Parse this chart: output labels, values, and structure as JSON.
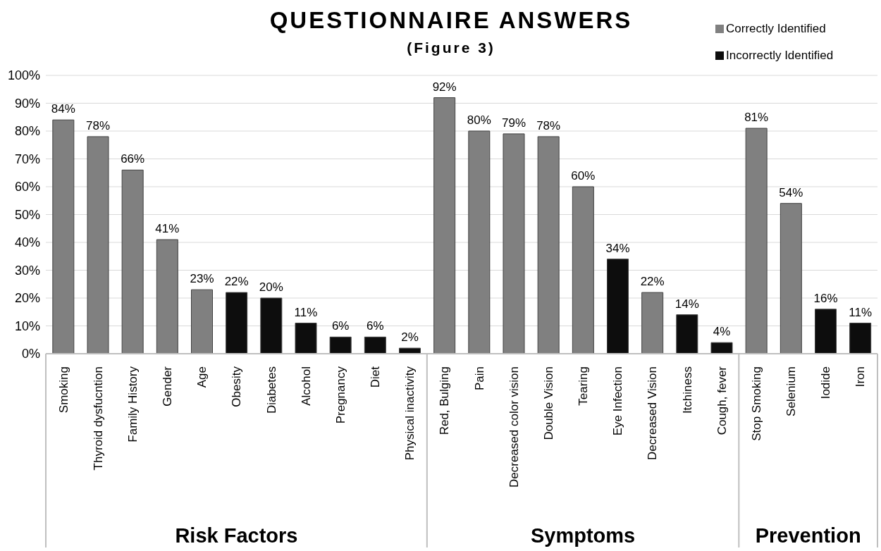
{
  "chart_data": {
    "type": "bar",
    "title": "QUESTIONNAIRE ANSWERS",
    "subtitle": "(Figure 3)",
    "categories": [
      "Smoking",
      "Thyroid dysfucntion",
      "Family History",
      "Gender",
      "Age",
      "Obesity",
      "Diabetes",
      "Alcohol",
      "Pregnancy",
      "Diet",
      "Physical inactivity",
      "Red, Bulging",
      "Pain",
      "Decreased color vision",
      "Double Vision",
      "Tearing",
      "Eye Infection",
      "Decreased Vision",
      "Itchiness",
      "Cough, fever",
      "Stop Smoking",
      "Selenium",
      "Iodide",
      "Iron"
    ],
    "series": [
      {
        "name": "Correctly Identified",
        "color": "#808080",
        "values": [
          84,
          78,
          66,
          41,
          23,
          null,
          null,
          null,
          null,
          null,
          null,
          92,
          80,
          79,
          78,
          60,
          null,
          22,
          null,
          null,
          81,
          54,
          null,
          null
        ],
        "value_labels": [
          "84%",
          "78%",
          "66%",
          "41%",
          "23%",
          null,
          null,
          null,
          null,
          null,
          null,
          "92%",
          "80%",
          "79%",
          "78%",
          "60%",
          null,
          "22%",
          null,
          null,
          "81%",
          "54%",
          null,
          null
        ]
      },
      {
        "name": "Incorrectly Identified",
        "color": "#0d0d0d",
        "values": [
          null,
          null,
          null,
          null,
          null,
          22,
          20,
          11,
          6,
          6,
          2,
          null,
          null,
          null,
          null,
          null,
          34,
          null,
          14,
          4,
          null,
          null,
          16,
          11
        ],
        "value_labels": [
          null,
          null,
          null,
          null,
          null,
          "22%",
          "20%",
          "11%",
          "6%",
          "6%",
          "2%",
          null,
          null,
          null,
          null,
          null,
          "34%",
          null,
          "14%",
          "4%",
          null,
          null,
          "16%",
          "11%"
        ]
      }
    ],
    "stacked": true,
    "ylim": [
      0,
      100
    ],
    "yticks": [
      {
        "value": 0,
        "label": "0%"
      },
      {
        "value": 10,
        "label": "10%"
      },
      {
        "value": 20,
        "label": "20%"
      },
      {
        "value": 30,
        "label": "30%"
      },
      {
        "value": 40,
        "label": "40%"
      },
      {
        "value": 50,
        "label": "50%"
      },
      {
        "value": 60,
        "label": "60%"
      },
      {
        "value": 70,
        "label": "70%"
      },
      {
        "value": 80,
        "label": "80%"
      },
      {
        "value": 90,
        "label": "90%"
      },
      {
        "value": 100,
        "label": "100%"
      }
    ],
    "grid": "y",
    "legend": "top right",
    "annotations": [
      "Risk Factors",
      "Symptoms",
      "Prevention"
    ]
  }
}
